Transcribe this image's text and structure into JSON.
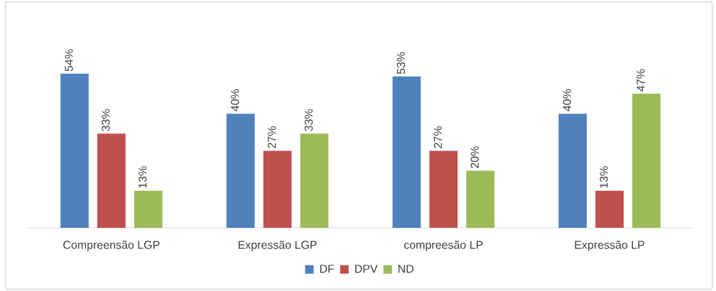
{
  "chart_data": {
    "type": "bar",
    "categories": [
      "Compreensão LGP",
      "Expressão LGP",
      "compreesão LP",
      "Expressão LP"
    ],
    "series": [
      {
        "name": "DF",
        "color": "#4f81bd",
        "values": [
          54,
          40,
          53,
          40
        ],
        "value_labels": [
          "54%",
          "40%",
          "53%",
          "40%"
        ]
      },
      {
        "name": "DPV",
        "color": "#c0504d",
        "values": [
          33,
          27,
          27,
          13
        ],
        "value_labels": [
          "33%",
          "27%",
          "27%",
          "13%"
        ]
      },
      {
        "name": "ND",
        "color": "#9bbb59",
        "values": [
          13,
          33,
          20,
          47
        ],
        "value_labels": [
          "13%",
          "33%",
          "20%",
          "47%"
        ]
      }
    ],
    "legend": "bottom"
  }
}
